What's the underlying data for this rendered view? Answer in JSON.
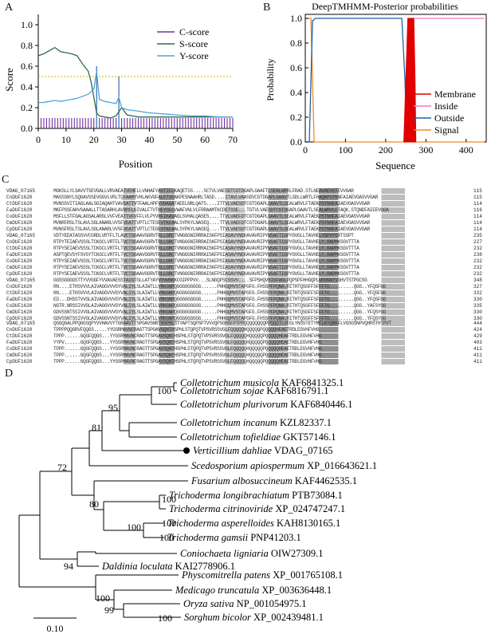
{
  "panels": {
    "a": "A",
    "b": "B",
    "c": "C",
    "d": "D"
  },
  "chart_a": {
    "type": "line",
    "ylabel": "Score",
    "xlabel": "Position",
    "xlim": [
      0,
      70
    ],
    "ylim": [
      0,
      1.1
    ],
    "xticks": [
      "0",
      "10",
      "20",
      "30",
      "40",
      "50",
      "60",
      "70"
    ],
    "yticks": [
      "0.0",
      "0.2",
      "0.4",
      "0.6",
      "0.8",
      "1.0"
    ],
    "threshold": 0.5,
    "legend": [
      {
        "label": "C-score",
        "color": "#7030a0"
      },
      {
        "label": "S-score",
        "color": "#2e6b48"
      },
      {
        "label": "Y-score",
        "color": "#4fa3d8"
      }
    ],
    "c_score": {
      "x": [
        1,
        2,
        3,
        4,
        5,
        6,
        7,
        8,
        9,
        10,
        11,
        12,
        13,
        14,
        15,
        16,
        17,
        18,
        19,
        20,
        21,
        22,
        23,
        24,
        25,
        26,
        27,
        28,
        29,
        30,
        31,
        32,
        33,
        34,
        35,
        36,
        37,
        38,
        39,
        40,
        41,
        42,
        43,
        44,
        45,
        46,
        47,
        48,
        49,
        50,
        51,
        52,
        53,
        54,
        55,
        56,
        57,
        58,
        59,
        60,
        61,
        62,
        63,
        64,
        65,
        66,
        67,
        68,
        69,
        70
      ],
      "y": [
        0.1,
        0.1,
        0.1,
        0.1,
        0.1,
        0.1,
        0.1,
        0.1,
        0.1,
        0.1,
        0.1,
        0.1,
        0.1,
        0.1,
        0.1,
        0.1,
        0.1,
        0.1,
        0.1,
        0.1,
        0.6,
        0.1,
        0.1,
        0.1,
        0.1,
        0.1,
        0.1,
        0.1,
        0.5,
        0.1,
        0.1,
        0.1,
        0.1,
        0.1,
        0.1,
        0.1,
        0.1,
        0.1,
        0.1,
        0.1,
        0.1,
        0.1,
        0.1,
        0.1,
        0.1,
        0.1,
        0.1,
        0.1,
        0.1,
        0.1,
        0.1,
        0.1,
        0.1,
        0.1,
        0.1,
        0.1,
        0.1,
        0.1,
        0.1,
        0.1,
        0.1,
        0.1,
        0.1,
        0.1,
        0.1,
        0.1,
        0.1,
        0.1,
        0.1,
        0.1
      ]
    },
    "s_score": {
      "x": [
        0,
        2,
        4,
        6,
        8,
        10,
        12,
        14,
        16,
        18,
        19,
        20,
        21,
        22,
        24,
        26,
        28,
        30,
        32,
        34,
        36,
        40,
        45,
        50,
        55,
        60,
        65,
        70
      ],
      "y": [
        0.7,
        0.72,
        0.75,
        0.78,
        0.74,
        0.73,
        0.72,
        0.7,
        0.62,
        0.55,
        0.45,
        0.3,
        0.15,
        0.12,
        0.11,
        0.1,
        0.12,
        0.2,
        0.13,
        0.12,
        0.11,
        0.11,
        0.11,
        0.11,
        0.11,
        0.11,
        0.11,
        0.11
      ]
    },
    "y_score": {
      "x": [
        0,
        2,
        4,
        6,
        8,
        10,
        12,
        14,
        16,
        18,
        20,
        21,
        22,
        24,
        26,
        28,
        29,
        30,
        32,
        35,
        40,
        45,
        50,
        55,
        60,
        65,
        70
      ],
      "y": [
        0.25,
        0.25,
        0.26,
        0.27,
        0.26,
        0.27,
        0.28,
        0.29,
        0.31,
        0.33,
        0.38,
        0.55,
        0.28,
        0.26,
        0.25,
        0.24,
        0.3,
        0.2,
        0.18,
        0.17,
        0.15,
        0.14,
        0.13,
        0.12,
        0.12,
        0.11,
        0.11
      ]
    }
  },
  "chart_b": {
    "type": "line",
    "title": "DeepTMHMM-Posterior probabilities",
    "ylabel": "Probability",
    "xlabel": "Sequence",
    "xlim": [
      0,
      450
    ],
    "ylim": [
      0,
      1.05
    ],
    "xticks": [
      "0",
      "100",
      "200",
      "300",
      "400"
    ],
    "yticks": [
      "0.0",
      "0.2",
      "0.4",
      "0.6",
      "0.8",
      "1.0"
    ],
    "legend": [
      {
        "label": "Membrane",
        "color": "#e00000"
      },
      {
        "label": "Inside",
        "color": "#f07ac6"
      },
      {
        "label": "Outside",
        "color": "#1f5fa8"
      },
      {
        "label": "Signal",
        "color": "#f08c1a"
      }
    ],
    "membrane": {
      "x": [
        245,
        250,
        255,
        258,
        262,
        266,
        270,
        273,
        275
      ],
      "y": [
        0,
        0.5,
        1,
        1,
        1,
        1,
        1,
        0.5,
        0
      ]
    },
    "inside": {
      "x": [
        270,
        280,
        300,
        350,
        400,
        445
      ],
      "y": [
        1,
        1,
        1,
        1,
        1,
        1
      ]
    },
    "outside": {
      "x": [
        0,
        10,
        18,
        25,
        60,
        150,
        240,
        248,
        252
      ],
      "y": [
        0,
        0,
        0.98,
        1,
        1,
        1,
        1,
        0.5,
        0
      ]
    },
    "signal": {
      "x": [
        0,
        8,
        14,
        18,
        22,
        30,
        445
      ],
      "y": [
        1,
        1,
        1,
        0.5,
        0,
        0,
        0
      ]
    }
  },
  "alignment": {
    "blocks": [
      {
        "rows": [
          {
            "name": "VDAG_07165",
            "seq": "MGKSLLYLSAVVTSEVGALLVRVAEATVEHFLLVNHAFYAVTIFLKAQETSS....SCTVLVAESDTCGTDGAPLGAAFTLSEALWRRLFRAD.STLNEAVAEVGTEVVGAR",
            "end": "115"
          },
          {
            "name": "CnDUF1620",
            "seq": "MASSSNYLSQGAVSSEVGGVLVRLTQFAAMYVHLAKVGFALETVEAKPESNAAHRLTASD....ITAVLVAASDVCGTDGAPLGAAVTLSDLLWRTLFHAQKPSTNNFAIAEVGASVVGAR",
            "end": "115"
          },
          {
            "name": "CtDUF1620",
            "seq": "MVNSSVITIAGLAALSGIAQAHTVAVEATTVTFAALHPFVVHAGATAEELNRLQATS....ITTVLVAESDTCGTDGAPLGAAVTLSEALWRVLFTAEKPSTNHFAIAEVGASVVGAR",
            "end": "114"
          },
          {
            "name": "FaDUF1620",
            "seq": "MKFPSSFAHVSAAALLTTASARHLAVRPFLGIVALFTVTHFYSFLVWAFVNLVLFRRAAMTKCDETSSE...TGTVLVAESDTCGTDGAPLGAAVTLSEALWRVLFTAQK.STQNDFAIEEVGGA",
            "end": "116"
          },
          {
            "name": "CoDUF1620",
            "seq": "MSFLLSTFGALAGSALARGLVVFVEATTVFVFFLVLPYVRFIKAVAGLSVHALQASES....TTVLVAEFDTCGTDGAPLGAAVTLSEALWRVLFTAEKPSTNHFAIAEVGASVVGAR",
            "end": "114"
          },
          {
            "name": "CmDUF1620",
            "seq": "MVNRFRSLTSLAVLSGLANARLVVSFVEATTVPTLCTESFVTKFAALSYPKYLNASEQ....TTVLVAEFDTCGTDGAPLGAAVTLSEALWRVLFTAEKPSTNHFAIAEVGASVVGAR",
            "end": "114"
          },
          {
            "name": "CpDUF1620",
            "seq": "MVNSFRSLTSLAVLSGLANARLVVSFVEATTVPTLCTEGFVTKFAALSYPKYLNASEQ....TTVLVAESDTCGTDGAPLGAAVTLSEALWRVLFTAEKPSTNHFAIAEVGASVVGAR",
            "end": "114"
          }
        ]
      },
      {
        "rows": [
          {
            "name": "VDAG_07165",
            "seq": "VDTYEEATASSVVCGRDLVRTFLTLAVCTSGAAVGGRVTRLLGRCTVNGGGNIRRRAISKFPSIASAVYNEKAVAVRIPYWSAFTIGPYGVGLLTAVHELYGPVYGRTSSPT",
            "end": "235"
          },
          {
            "name": "CnDUF1620",
            "seq": "RTPYTEIAEVSSSLTCKGCLVRTFLTVCTSGAAVGGRVTRLLGRCTVNGGGNIRRRAISKFPSIASAVYNEKAVAVRIPYWSAFTIGPYGVGLLTAVHELY.RAPMKSGVTTTA",
            "end": "227"
          },
          {
            "name": "CtDUF1620",
            "seq": "RTPYSEIAEVSSSLTCKGCLVRTFLTVCTSGAAVGGRVTRLLGRCTVNGGGNIRRRAISKFPSIASAVYNEKAVAVRIPYWSAFTIGPYGVGLLTAVHELY.RAPMKSGVTTTA",
            "end": "232"
          },
          {
            "name": "FaDUF1620",
            "seq": "ASPTQEVSYFSVSYTCKGCLVRTFLTVCTSGAAVGGRVTRLLGRCTVNGGGNIRRRAISKFPSIASAVYNEKAVAVRIPYWSAFTIGPYGVGLLTAVHELY.RAPMKSGVTTTA",
            "end": "238"
          },
          {
            "name": "CoDUF1620",
            "seq": "RTPYSEIAEVSSSLTCKGCLVRTFLTVCTSGAAVGGRVTRLLGRCTVNGGGNIRRRAISKFPSIASAVYNEKAVAVRIPYWSAFTIGPYGVGLLTAVHELY.RAPMKSGVTTTA",
            "end": "232"
          },
          {
            "name": "CmDUF1620",
            "seq": "RTPYSEIAEVSSSLTCKGCLVRTFLTVCTSGAAVGGRVTRLLGRCTVNGGGNIRRRAISKFPSIASAVYNEKAVAVRIPYWSAFTIGPYGVGLLTAVHELY.RAPMKSGVTTTA",
            "end": "232"
          },
          {
            "name": "CpDUF1620",
            "seq": "RTPYSEIAEVSSSLTCKGCLVRTFLTVCTSGAAVGGRVTRLLGRCTVNGGGNIRRRAISKFPSIASAVYNEKAVAVRIPYWSAFTIGPYGVGLLTAVHELY.RAPMKSGVTTTA",
            "end": "232"
          }
        ]
      },
      {
        "rows": [
          {
            "name": "VDAG_07165",
            "seq": "GGSSGGGGSTTYVVGGFYVVAVAESSTAIGTGLLATYAYVVVWSKKCGIPPPVV...SLNGQPSCSSVV....SFPSHQVRIGFWGLPQPSPFHHGQPLWSGNAYVGHVTSTPGCSG",
            "end": "348"
          },
          {
            "name": "CnDUF1620",
            "seq": "RN....ETHSVVVLAIVAGGVVVGYVALIYLSLAIWTLLVRKGNPQGGGGGGGGG......PHHGQMVSTAPGFG.FHSSPFPQNA.RITHTQSGFFSFFFTG.........QGG..YFQSFGG",
            "end": "327"
          },
          {
            "name": "CtDUF1620",
            "seq": "RN....ETHSVVVLAIVAGGVVVGYVALIYLSLAIWTLLVRKGNPQGGGGGGGGG......PHHGQMVSTAPGFG.FHSSPFPQNA.RITHTQSGFFSFFFTG.........QGG..YFQSFGG",
            "end": "332"
          },
          {
            "name": "FaDUF1620",
            "seq": "ED...DHSSTVVGLAIVAGGVVVGYVALIYLSLAIWTLLVRKGNPQGGGGGGGGG......PHHGQMVSTAPGFG.FHSSPFPQNA.RITHTQSGFFSFFFTG.........QGG..YFQSFGG",
            "end": "330"
          },
          {
            "name": "CoDUF1620",
            "seq": "NGTR.NRSSIVVGLAIVAGGVVVGYVALIYLSLAIWTLLVRKGNPQGGGGGGGGG......PHHGQMVSTAPGFG.FHSSPFPQNA.RITHTQSGFFSFFFTG.........QGG..YAFSYGG",
            "end": "335"
          },
          {
            "name": "CmDUF1620",
            "seq": "GDVSSNTSSIVVGLAIVAGGVVVGYVALIYLSLAIWTLLVRKGNPQGGGGGGGGG......PHHGQMVSTAPGFG.FHSSPFPQNA.RITHTQSGFFSFFFTG.........QGG..YFQSYGG",
            "end": "330"
          },
          {
            "name": "CpDUF1620",
            "seq": "GDVSSNTSSIVVGLAIVAGGVVVGYVALIYLSLAIWTLLVRKGNPQGGGGGGGGG......PHHGQMVSTAPGFG.FHSSPFPQNA.RITHTQSGFFSFFFTG.........QGG..YFQSYGG",
            "end": "330"
          }
        ]
      },
      {
        "rows": [
          {
            "name": "VDAG_07165",
            "seq": "QGGQGALPPQGGSQPYVVHAVVYTGRAAVTTSPGAVSNRTHSPHLSTYAPTSQPSPTVVVQPSGHSFPTPPQQQQQQQQPPQQQTLVEGLYNSSTETYMFLKYQNKFLVGSGSNPVQHRSTHTPVT",
            "end": "444"
          },
          {
            "name": "CnDUF1620",
            "seq": "TPPPPQQGRVFQQGS.....YYGSRMAVNCRAGTTSPGAVSQNTHSPHLSTQPQTVPSVRSSVGLFQQQQQHQQQQQPQQQQQHEAETRDLEGVHFVHG",
            "end": "424"
          },
          {
            "name": "CtDUF1620",
            "seq": "TPPP......GQGFQQGS...YYGSRMAVNCRAGTTSPGAVSQNTHSPHLSTQPQTVPSVRSSVGLFQQQQQHQQQQQPQQQQQHEAETRDLEGVHFVHG",
            "end": "429"
          },
          {
            "name": "FaDUF1620",
            "seq": "YYPV......GQGFQQGS...YYGSRMAVNCRAGTTSPGAVSQNTHSPHLSTQPQTVPSVRSSVGLFQQQQQHQQQQQPQQQQQHEAETRDLEGVHFVHG",
            "end": "403"
          },
          {
            "name": "CoDUF1620",
            "seq": "TPPP......GQGFQQGS...YYGSRMAVNCRAGTTSPGAVSQNTHSPHLSTQPQTVPSVRSSVGLFQQQQQHQQQQQPQQQQQHEAETRDLEGVHFVHG",
            "end": "411"
          },
          {
            "name": "CmDUF1620",
            "seq": "TPPP......GQGFQQGS...YYGSRMAVNCRAGTTSPGAVSQNTHSPHLSTQPQTVPSVRSSVGLFQQQQQHQQQQQPQQQQQHEAETRDLEGVHFVHG",
            "end": "411"
          },
          {
            "name": "CpDUF1620",
            "seq": "TPPP......GQGFQQGS...YYGSRMAVNCRAGTTSPGAVSQNTHSPHLSTQPQTVPSVRSSVGLFQQQQQHQQQQQPQQQQQHEAETRDLEGVHFVHG",
            "end": "411"
          }
        ]
      }
    ]
  },
  "tree": {
    "leaves": [
      {
        "genus": "Colletotrichum musicola",
        "acc": "KAF6841325.1"
      },
      {
        "genus": "Colletotrichum sojae",
        "acc": "KAF6816791.1"
      },
      {
        "genus": "Colletotrichum plurivorum",
        "acc": "KAF6840446.1"
      },
      {
        "genus": "Colletotrichum incanum",
        "acc": "KZL82337.1"
      },
      {
        "genus": "Colletotrichum tofieldiae",
        "acc": "GKT57146.1"
      },
      {
        "genus": "Verticillium dahliae",
        "acc": "VDAG_07165"
      },
      {
        "genus": "Scedosporium apiospermum",
        "acc": "XP_016643621.1"
      },
      {
        "genus": "Fusarium albosuccineum",
        "acc": "KAF4462535.1"
      },
      {
        "genus": "Trichoderma longibrachiatum",
        "acc": "PTB73084.1"
      },
      {
        "genus": "Trichoderma citrinoviride",
        "acc": "XP_024747247.1"
      },
      {
        "genus": "Trichoderma asperelloides",
        "acc": "KAH8130165.1"
      },
      {
        "genus": "Trichoderma gamsii",
        "acc": "PNP41203.1"
      },
      {
        "genus": "Coniochaeta ligniaria",
        "acc": "OIW27309.1"
      },
      {
        "genus": "Daldinia loculata",
        "acc": "KAI2778906.1"
      },
      {
        "genus": "Physcomitrella patens",
        "acc": "XP_001765108.1"
      },
      {
        "genus": "Medicago truncatula",
        "acc": "XP_003636448.1"
      },
      {
        "genus": "Oryza sativa",
        "acc": "NP_001054975.1"
      },
      {
        "genus": "Sorghum bicolor",
        "acc": "XP_002439481.1"
      }
    ],
    "bootstrap": [
      "100",
      "95",
      "81",
      "72",
      "100",
      "80",
      "100",
      "100",
      "100",
      "94",
      "100",
      "99",
      "100"
    ],
    "scale": "0.10"
  }
}
